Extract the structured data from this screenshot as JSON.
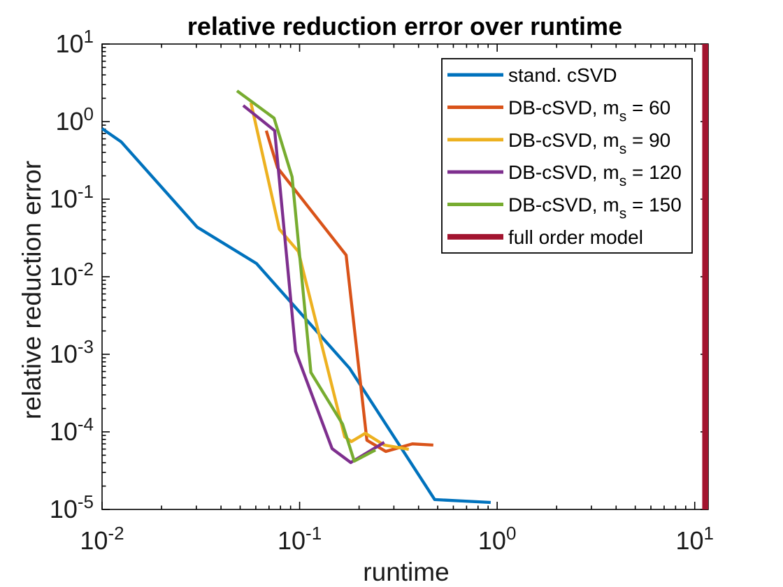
{
  "figure": {
    "title": "relative reduction error over runtime",
    "xlabel": "runtime",
    "ylabel": "relative reduction error",
    "background_color": "#ffffff",
    "axis_color": "#000000"
  },
  "chart_data": {
    "type": "line",
    "x_scale": "log",
    "y_scale": "log",
    "xlim": [
      0.01,
      11.7
    ],
    "ylim": [
      1e-05,
      10
    ],
    "grid": false,
    "legend_position": "upper right",
    "x_tick_exponents": [
      -2,
      -1,
      0,
      1
    ],
    "y_tick_exponents": [
      1,
      0,
      -1,
      -2,
      -3,
      -4,
      -5
    ],
    "x_tick_labels": [
      "10^-2",
      "10^-1",
      "10^0",
      "10^1"
    ],
    "y_tick_labels": [
      "10^1",
      "10^0",
      "10^-1",
      "10^-2",
      "10^-3",
      "10^-4",
      "10^-5"
    ],
    "series": [
      {
        "name": "stand. cSVD",
        "label": {
          "pre": "stand. cSVD",
          "sub": "",
          "post": ""
        },
        "color": "#0072BD",
        "width": 4.3,
        "points": [
          [
            0.01,
            0.813
          ],
          [
            0.0125,
            0.548
          ],
          [
            0.0303,
            0.0436
          ],
          [
            0.0605,
            0.0148
          ],
          [
            0.179,
            0.00066
          ],
          [
            0.483,
            1.34e-05
          ],
          [
            0.927,
            1.23e-05
          ]
        ]
      },
      {
        "name": "DB-cSVD, m_s = 60",
        "label": {
          "pre": "DB-cSVD, m",
          "sub": "s",
          "post": " = 60"
        },
        "color": "#D95319",
        "width": 4.3,
        "points": [
          [
            0.0678,
            0.764
          ],
          [
            0.0773,
            0.254
          ],
          [
            0.172,
            0.019
          ],
          [
            0.219,
            7.8e-05
          ],
          [
            0.273,
            5.6e-05
          ],
          [
            0.372,
            7e-05
          ],
          [
            0.475,
            6.75e-05
          ]
        ]
      },
      {
        "name": "DB-cSVD, m_s = 90",
        "label": {
          "pre": "DB-cSVD, m",
          "sub": "s",
          "post": " = 90"
        },
        "color": "#EDB120",
        "width": 4.3,
        "points": [
          [
            0.0567,
            1.75
          ],
          [
            0.079,
            0.041
          ],
          [
            0.0986,
            0.0211
          ],
          [
            0.169,
            8.65e-05
          ],
          [
            0.183,
            7.5e-05
          ],
          [
            0.215,
            9.6e-05
          ],
          [
            0.268,
            6.75e-05
          ],
          [
            0.357,
            5.95e-05
          ]
        ]
      },
      {
        "name": "DB-cSVD, m_s = 120",
        "label": {
          "pre": "DB-cSVD, m",
          "sub": "s",
          "post": " = 120"
        },
        "color": "#7E2F8E",
        "width": 4.3,
        "points": [
          [
            0.0518,
            1.61
          ],
          [
            0.0748,
            0.764
          ],
          [
            0.0955,
            0.00109
          ],
          [
            0.146,
            6.08e-05
          ],
          [
            0.1815,
            4.02e-05
          ],
          [
            0.268,
            7.33e-05
          ]
        ]
      },
      {
        "name": "DB-cSVD, m_s = 150",
        "label": {
          "pre": "DB-cSVD, m",
          "sub": "s",
          "post": " = 150"
        },
        "color": "#77AC30",
        "width": 4.3,
        "points": [
          [
            0.0482,
            2.49
          ],
          [
            0.0742,
            1.11
          ],
          [
            0.0916,
            0.194
          ],
          [
            0.114,
            0.000583
          ],
          [
            0.165,
            0.000126
          ],
          [
            0.189,
            4.19e-05
          ],
          [
            0.242,
            5.83e-05
          ]
        ]
      }
    ],
    "vline": {
      "name": "full order model",
      "label": {
        "pre": "full order model",
        "sub": "",
        "post": ""
      },
      "color": "#A2142F",
      "x": 11.3,
      "width": 8.5,
      "legend_sample_width": 8
    }
  }
}
